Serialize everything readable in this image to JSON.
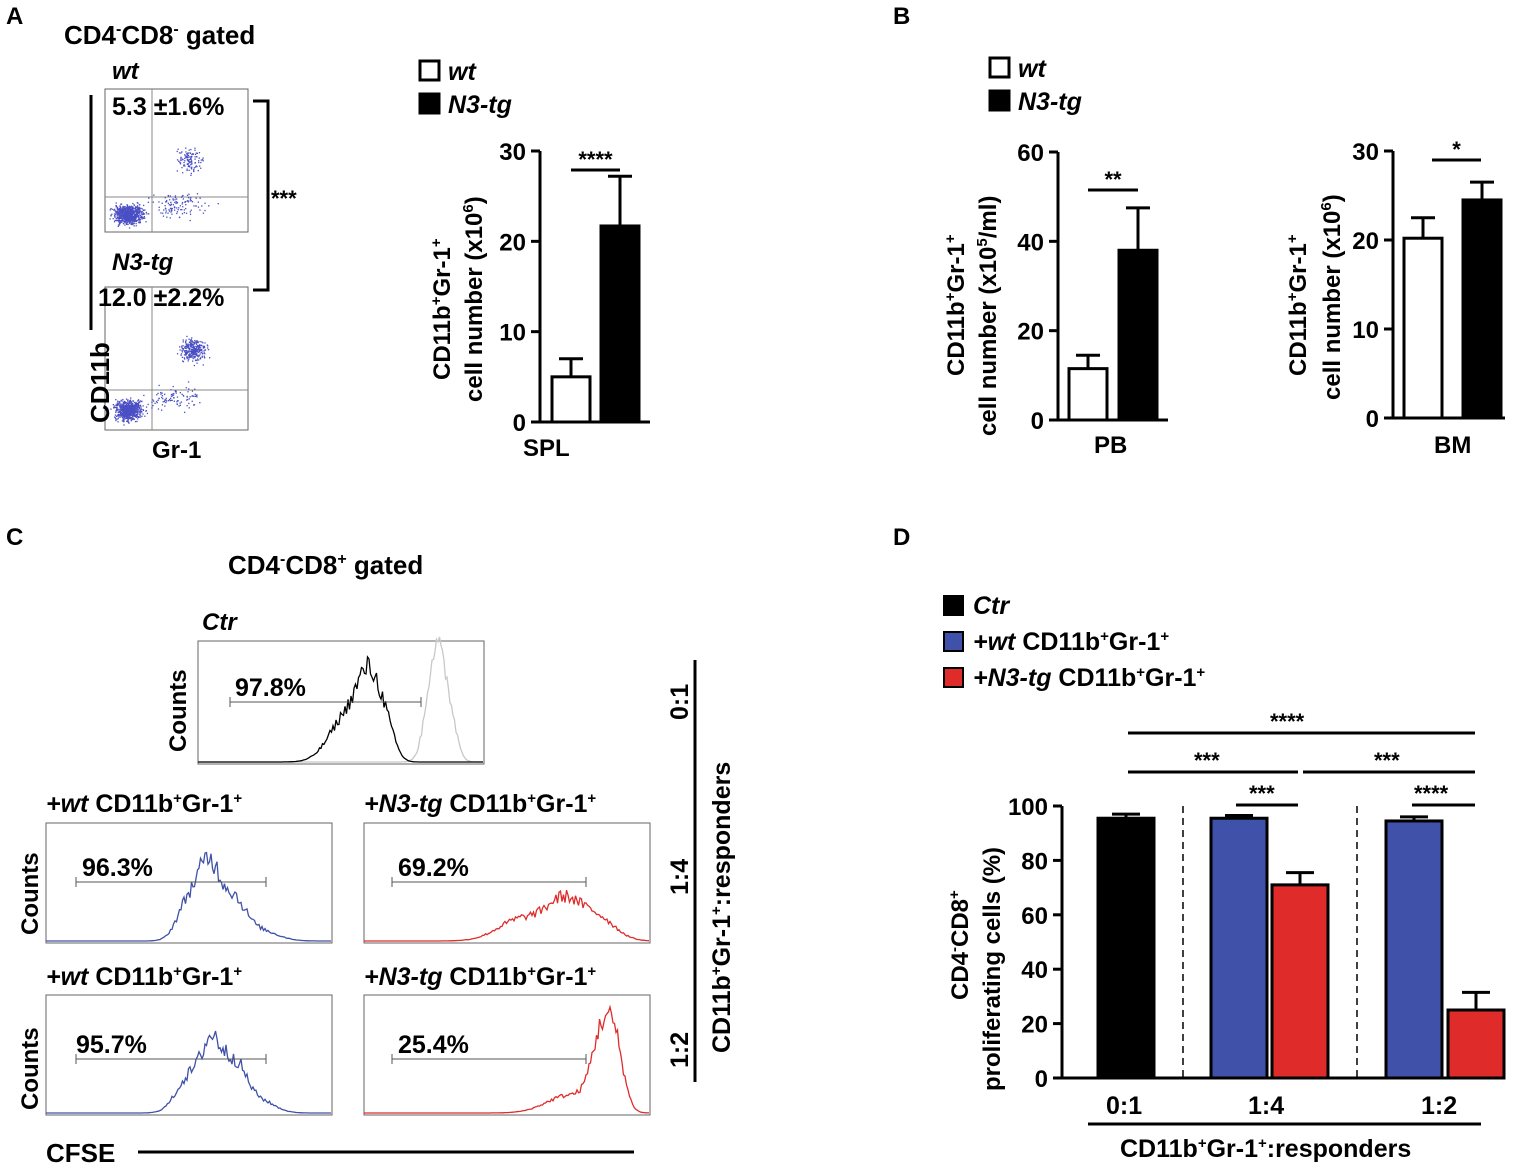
{
  "panels": {
    "A": {
      "letter": "A",
      "gate_pre": "CD4",
      "gate_sup1": "-",
      "gate_mid": "CD8",
      "gate_sup2": "-",
      "gate_post": " gated",
      "plot_wt_label": "wt",
      "plot_wt_pct": "5.3 ±1.6%",
      "plot_tg_label": "N3-tg",
      "plot_tg_pct": "12.0 ±2.2%",
      "sig_between_plots": "***",
      "y_marker": "CD11b",
      "x_marker": "Gr-1"
    },
    "B": {
      "letter": "B"
    },
    "C": {
      "letter": "C",
      "gate_pre": "CD4",
      "gate_sup1": "-",
      "gate_mid": "CD8",
      "gate_sup2": "+",
      "gate_post": " gated",
      "ctr_label": "Ctr",
      "ctr_pct": "97.8%",
      "counts_label": "Counts",
      "x_marker": "CFSE",
      "hist_wt_title_a": "+wt",
      "hist_wt_title_b": " CD11b",
      "hist_wt_title_c": "+",
      "hist_wt_title_d": "Gr-1",
      "hist_wt_title_e": "+",
      "hist_tg_title_a": "+N3-tg",
      "hist_tg_title_b": " CD11b",
      "hist_tg_title_c": "+",
      "hist_tg_title_d": "Gr-1",
      "hist_tg_title_e": "+",
      "wt_14_pct": "96.3%",
      "tg_14_pct": "69.2%",
      "wt_12_pct": "95.7%",
      "tg_12_pct": "25.4%",
      "ratio_01": "0:1",
      "ratio_14": "1:4",
      "ratio_12": "1:2",
      "ratio_axis_a": "CD11b",
      "ratio_axis_b": "+",
      "ratio_axis_c": "Gr-1",
      "ratio_axis_d": "+",
      "ratio_axis_e": ":responders"
    },
    "D": {
      "letter": "D"
    }
  },
  "legend_AB": {
    "wt": "wt",
    "tg": "N3-tg"
  },
  "legend_D": {
    "ctr": "Ctr",
    "wt_a": "+wt",
    "wt_b": " CD11b",
    "wt_c": "+",
    "wt_d": "Gr-1",
    "wt_e": "+",
    "tg_a": "+N3-tg",
    "tg_b": " CD11b",
    "tg_c": "+",
    "tg_d": "Gr-1",
    "tg_e": "+"
  },
  "colors": {
    "wt_bar": "#ffffff",
    "tg_bar": "#000000",
    "ctr": "#000000",
    "wt_coc": "#3f51a8",
    "tg_coc": "#e02b2b",
    "dots": "#4a4fc4",
    "ctr_hist_shift": "#c8c8c8"
  },
  "chart_data": [
    {
      "id": "SPL",
      "type": "bar",
      "categories": [
        "SPL"
      ],
      "series": [
        {
          "name": "wt",
          "values": [
            5.0
          ],
          "error": [
            2.0
          ]
        },
        {
          "name": "N3-tg",
          "values": [
            21.7
          ],
          "error": [
            5.5
          ]
        }
      ],
      "ylabel_a": "CD11b",
      "ylabel_b": "+",
      "ylabel_c": "Gr-1",
      "ylabel_d": "+",
      "ylabel2_a": "cell number (x10",
      "ylabel2_b": "6",
      "ylabel2_c": ")",
      "ylim": [
        0,
        30
      ],
      "yticks": [
        "0",
        "10",
        "20",
        "30"
      ],
      "significance": "****"
    },
    {
      "id": "PB",
      "type": "bar",
      "categories": [
        "PB"
      ],
      "series": [
        {
          "name": "wt",
          "values": [
            11.5
          ],
          "error": [
            3.0
          ]
        },
        {
          "name": "N3-tg",
          "values": [
            38.0
          ],
          "error": [
            9.5
          ]
        }
      ],
      "ylabel_a": "CD11b",
      "ylabel_b": "+",
      "ylabel_c": "Gr-1",
      "ylabel_d": "+",
      "ylabel2_a": "cell number (x10",
      "ylabel2_b": "5",
      "ylabel2_c": "/ml)",
      "ylim": [
        0,
        60
      ],
      "yticks": [
        "0",
        "20",
        "40",
        "60"
      ],
      "significance": "**"
    },
    {
      "id": "BM",
      "type": "bar",
      "categories": [
        "BM"
      ],
      "series": [
        {
          "name": "wt",
          "values": [
            20.2
          ],
          "error": [
            2.3
          ]
        },
        {
          "name": "N3-tg",
          "values": [
            24.5
          ],
          "error": [
            2.0
          ]
        }
      ],
      "ylabel_a": "CD11b",
      "ylabel_b": "+",
      "ylabel_c": "Gr-1",
      "ylabel_d": "+",
      "ylabel2_a": "cell number (x10",
      "ylabel2_b": "6",
      "ylabel2_c": ")",
      "ylim": [
        0,
        30
      ],
      "yticks": [
        "0",
        "10",
        "20",
        "30"
      ],
      "significance": "*"
    },
    {
      "id": "D",
      "type": "bar",
      "categories": [
        "0:1",
        "1:4",
        "1:2"
      ],
      "series": [
        {
          "name": "Ctr",
          "values": [
            95.5,
            null,
            null
          ],
          "error": [
            1.5,
            null,
            null
          ]
        },
        {
          "name": "+wt CD11b+Gr-1+",
          "values": [
            null,
            95.5,
            94.5
          ],
          "error": [
            null,
            1.0,
            1.5
          ]
        },
        {
          "name": "+N3-tg CD11b+Gr-1+",
          "values": [
            null,
            71.0,
            25.0
          ],
          "error": [
            null,
            4.5,
            6.5
          ]
        }
      ],
      "ylabel_a": "CD4",
      "ylabel_b": "-",
      "ylabel_c": "CD8",
      "ylabel_d": "+",
      "ylabel2": "proliferating cells (%)",
      "xlabel_a": "CD11b",
      "xlabel_b": "+",
      "xlabel_c": "Gr-1",
      "xlabel_d": "+",
      "xlabel_e": ":responders",
      "ylim": [
        0,
        100
      ],
      "yticks": [
        "0",
        "20",
        "40",
        "60",
        "80",
        "100"
      ],
      "sig_inner_14": "***",
      "sig_inner_12": "****",
      "sig_01_14": "***",
      "sig_14_12": "***",
      "sig_01_12": "****"
    }
  ]
}
